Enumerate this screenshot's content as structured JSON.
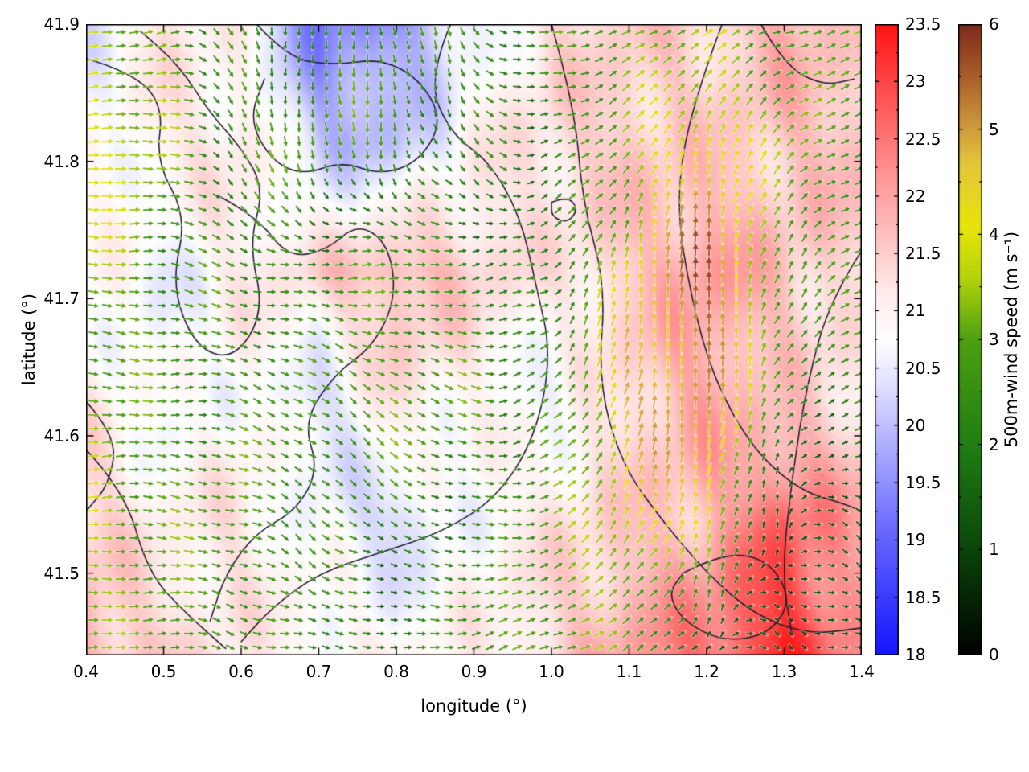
{
  "chart_data": {
    "type": "heatmap",
    "subtype": "geographic temperature field with wind-vector overlay and contour lines",
    "title": "",
    "xlabel": "longitude (°)",
    "ylabel": "latitude (°)",
    "xlim": [
      0.4,
      1.4
    ],
    "ylim": [
      41.44,
      41.9
    ],
    "xtick_labels": [
      "0.4",
      "0.5",
      "0.6",
      "0.7",
      "0.8",
      "0.9",
      "1.0",
      "1.1",
      "1.2",
      "1.3",
      "1.4"
    ],
    "ytick_labels": [
      "41.5",
      "41.6",
      "41.7",
      "41.8",
      "41.9"
    ],
    "grid": false,
    "temperature": {
      "range": [
        18,
        23.5
      ],
      "colorbar_tick_labels": [
        "18",
        "18.5",
        "19",
        "19.5",
        "20",
        "20.5",
        "21",
        "21.5",
        "22",
        "22.5",
        "23",
        "23.5"
      ],
      "palette": [
        [
          0,
          "#1414ff"
        ],
        [
          0.2,
          "#6a6aff"
        ],
        [
          0.42,
          "#dcdcff"
        ],
        [
          0.5,
          "#ffffff"
        ],
        [
          0.58,
          "#ffe8e8"
        ],
        [
          0.75,
          "#ff9a9a"
        ],
        [
          1,
          "#ff1414"
        ]
      ],
      "grid_lon": [
        0.4,
        0.5,
        0.6,
        0.7,
        0.8,
        0.9,
        1.0,
        1.1,
        1.2,
        1.3,
        1.4
      ],
      "grid_lat": [
        41.9,
        41.81,
        41.72,
        41.63,
        41.54,
        41.45
      ],
      "values": [
        [
          20.5,
          21.2,
          20.9,
          19.3,
          19.6,
          20.5,
          21.3,
          21.5,
          21.4,
          21.9,
          21.5
        ],
        [
          20.6,
          21.1,
          21.2,
          20.1,
          20.0,
          21.0,
          21.4,
          21.6,
          21.5,
          21.6,
          21.8
        ],
        [
          21.0,
          20.5,
          21.1,
          21.4,
          21.9,
          21.5,
          21.1,
          21.6,
          22.1,
          21.7,
          21.3
        ],
        [
          21.1,
          20.6,
          20.9,
          20.3,
          21.3,
          20.9,
          20.6,
          21.4,
          22.0,
          21.5,
          21.2
        ],
        [
          21.5,
          21.0,
          21.2,
          20.6,
          20.2,
          20.8,
          21.2,
          21.5,
          21.8,
          22.7,
          21.9
        ],
        [
          21.9,
          21.4,
          21.1,
          21.0,
          20.8,
          21.0,
          21.4,
          22.0,
          22.5,
          23.3,
          22.1
        ]
      ]
    },
    "wind": {
      "colorbar_label": "500m-wind speed (m s⁻¹)",
      "range": [
        0,
        6
      ],
      "colorbar_tick_labels": [
        "0",
        "1",
        "2",
        "3",
        "4",
        "5",
        "6"
      ],
      "palette": [
        [
          0,
          "#000000"
        ],
        [
          0.18,
          "#0c4a0c"
        ],
        [
          0.33,
          "#1f7d12"
        ],
        [
          0.5,
          "#4da012"
        ],
        [
          0.6,
          "#b5d40a"
        ],
        [
          0.68,
          "#e8e409"
        ],
        [
          0.78,
          "#e3c53c"
        ],
        [
          0.85,
          "#c8913a"
        ],
        [
          0.92,
          "#a85c28"
        ],
        [
          1,
          "#7d2a1a"
        ]
      ],
      "grid_lon": [
        0.4,
        0.5,
        0.6,
        0.7,
        0.8,
        0.9,
        1.0,
        1.1,
        1.2,
        1.3,
        1.4
      ],
      "grid_lat": [
        41.9,
        41.81,
        41.72,
        41.63,
        41.54,
        41.45
      ],
      "u": [
        [
          3.6,
          3.0,
          0.8,
          -0.4,
          0.2,
          1.6,
          2.6,
          3.0,
          2.8,
          2.6,
          3.0
        ],
        [
          4.0,
          3.4,
          1.2,
          0.2,
          0.6,
          1.2,
          2.2,
          2.4,
          1.4,
          2.2,
          2.6
        ],
        [
          3.6,
          2.6,
          2.2,
          2.6,
          2.8,
          2.2,
          1.6,
          0.6,
          -0.4,
          1.6,
          2.2
        ],
        [
          3.2,
          2.6,
          2.6,
          2.2,
          2.6,
          2.6,
          2.2,
          1.0,
          0.2,
          1.2,
          2.4
        ],
        [
          3.6,
          3.0,
          2.6,
          2.0,
          1.6,
          2.2,
          2.6,
          2.0,
          1.0,
          0.5,
          1.2
        ],
        [
          3.2,
          2.8,
          2.6,
          2.2,
          2.0,
          2.6,
          3.0,
          2.4,
          1.0,
          0.7,
          1.6
        ]
      ],
      "v": [
        [
          0.6,
          0.4,
          -2.0,
          -2.4,
          -2.6,
          -2.2,
          0.4,
          1.2,
          1.6,
          1.0,
          0.6
        ],
        [
          0.0,
          0.2,
          -2.6,
          -3.0,
          -2.6,
          -1.6,
          0.6,
          2.2,
          4.6,
          2.2,
          1.0
        ],
        [
          -0.4,
          -0.4,
          -1.0,
          0.4,
          0.6,
          0.0,
          1.2,
          4.2,
          5.6,
          2.6,
          1.0
        ],
        [
          -0.4,
          0.0,
          -0.6,
          -1.6,
          -2.0,
          -0.6,
          1.6,
          4.6,
          5.2,
          2.0,
          0.6
        ],
        [
          0.2,
          -0.4,
          -1.0,
          -1.6,
          -1.2,
          -0.6,
          1.2,
          3.6,
          4.2,
          0.4,
          -0.4
        ],
        [
          0.4,
          0.0,
          -0.6,
          -0.6,
          0.0,
          0.6,
          1.2,
          1.6,
          0.6,
          -0.3,
          -0.6
        ]
      ]
    },
    "contours": [
      [
        [
          0.4,
          41.875
        ],
        [
          0.46,
          41.865
        ],
        [
          0.5,
          41.84
        ],
        [
          0.49,
          41.8
        ],
        [
          0.53,
          41.76
        ],
        [
          0.51,
          41.71
        ],
        [
          0.54,
          41.665
        ],
        [
          0.59,
          41.655
        ],
        [
          0.63,
          41.69
        ],
        [
          0.61,
          41.74
        ],
        [
          0.63,
          41.78
        ],
        [
          0.6,
          41.81
        ],
        [
          0.56,
          41.835
        ],
        [
          0.52,
          41.87
        ],
        [
          0.47,
          41.895
        ]
      ],
      [
        [
          0.62,
          41.9
        ],
        [
          0.66,
          41.875
        ],
        [
          0.72,
          41.87
        ],
        [
          0.78,
          41.875
        ],
        [
          0.83,
          41.86
        ],
        [
          0.86,
          41.83
        ],
        [
          0.83,
          41.8
        ],
        [
          0.78,
          41.79
        ],
        [
          0.73,
          41.8
        ],
        [
          0.68,
          41.79
        ],
        [
          0.64,
          41.8
        ],
        [
          0.61,
          41.83
        ],
        [
          0.63,
          41.86
        ]
      ],
      [
        [
          0.87,
          41.9
        ],
        [
          0.84,
          41.86
        ],
        [
          0.87,
          41.82
        ],
        [
          0.92,
          41.8
        ],
        [
          0.96,
          41.76
        ],
        [
          0.98,
          41.71
        ],
        [
          1.0,
          41.66
        ],
        [
          0.98,
          41.6
        ],
        [
          0.93,
          41.555
        ],
        [
          0.86,
          41.53
        ],
        [
          0.78,
          41.515
        ],
        [
          0.7,
          41.5
        ],
        [
          0.64,
          41.475
        ],
        [
          0.6,
          41.45
        ]
      ],
      [
        [
          1.0,
          41.9
        ],
        [
          1.03,
          41.84
        ],
        [
          1.04,
          41.77
        ],
        [
          1.07,
          41.71
        ],
        [
          1.06,
          41.64
        ],
        [
          1.09,
          41.58
        ],
        [
          1.14,
          41.54
        ],
        [
          1.2,
          41.5
        ],
        [
          1.26,
          41.47
        ],
        [
          1.33,
          41.455
        ],
        [
          1.4,
          41.46
        ]
      ],
      [
        [
          1.22,
          41.9
        ],
        [
          1.18,
          41.84
        ],
        [
          1.16,
          41.77
        ],
        [
          1.18,
          41.7
        ],
        [
          1.21,
          41.64
        ],
        [
          1.26,
          41.59
        ],
        [
          1.32,
          41.56
        ],
        [
          1.38,
          41.55
        ],
        [
          1.4,
          41.545
        ]
      ],
      [
        [
          1.4,
          41.735
        ],
        [
          1.36,
          41.7
        ],
        [
          1.33,
          41.64
        ],
        [
          1.31,
          41.57
        ],
        [
          1.297,
          41.5
        ],
        [
          1.31,
          41.455
        ]
      ],
      [
        [
          1.17,
          41.5
        ],
        [
          1.22,
          41.515
        ],
        [
          1.28,
          41.51
        ],
        [
          1.31,
          41.48
        ],
        [
          1.28,
          41.455
        ],
        [
          1.22,
          41.45
        ],
        [
          1.17,
          41.465
        ],
        [
          1.15,
          41.485
        ],
        [
          1.17,
          41.5
        ]
      ],
      [
        [
          0.57,
          41.775
        ],
        [
          0.62,
          41.76
        ],
        [
          0.66,
          41.73
        ],
        [
          0.71,
          41.735
        ],
        [
          0.75,
          41.755
        ],
        [
          0.79,
          41.74
        ],
        [
          0.8,
          41.7
        ],
        [
          0.77,
          41.665
        ],
        [
          0.72,
          41.645
        ],
        [
          0.68,
          41.61
        ],
        [
          0.7,
          41.575
        ],
        [
          0.67,
          41.545
        ],
        [
          0.62,
          41.53
        ],
        [
          0.58,
          41.5
        ],
        [
          0.56,
          41.465
        ]
      ],
      [
        [
          1.27,
          41.9
        ],
        [
          1.3,
          41.87
        ],
        [
          1.35,
          41.855
        ],
        [
          1.39,
          41.86
        ]
      ],
      [
        [
          1.0,
          41.77
        ],
        [
          1.02,
          41.775
        ],
        [
          1.035,
          41.765
        ],
        [
          1.02,
          41.755
        ],
        [
          1.0,
          41.76
        ],
        [
          1.0,
          41.77
        ]
      ],
      [
        [
          0.4,
          41.625
        ],
        [
          0.44,
          41.6
        ],
        [
          0.43,
          41.565
        ],
        [
          0.4,
          41.545
        ]
      ],
      [
        [
          0.4,
          41.59
        ],
        [
          0.45,
          41.56
        ],
        [
          0.48,
          41.5
        ],
        [
          0.53,
          41.47
        ],
        [
          0.58,
          41.445
        ]
      ]
    ]
  }
}
